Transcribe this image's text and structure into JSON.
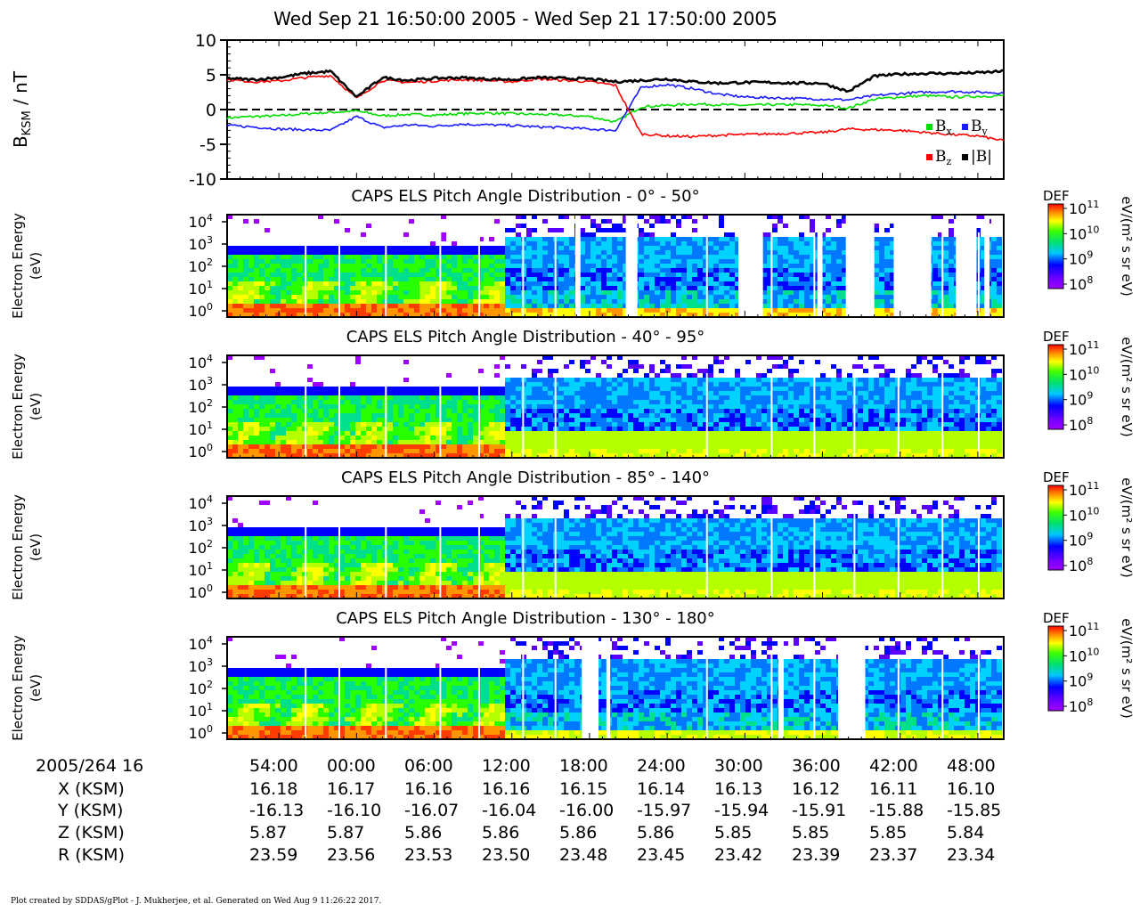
{
  "title": "Wed Sep 21 16:50:00 2005 - Wed Sep 21 17:50:00 2005",
  "mag_panel": {
    "ylabel_main": "B",
    "ylabel_sub": "KSM",
    "ylabel_unit": " / nT",
    "yticks": [
      "10",
      "5",
      "0",
      "-5",
      "-10"
    ],
    "ylim": [
      -10,
      10
    ],
    "legend": [
      {
        "label": "B",
        "sub": "x",
        "color": "#00dd00"
      },
      {
        "label": "B",
        "sub": "y",
        "color": "#1a1aff"
      },
      {
        "label": "B",
        "sub": "z",
        "color": "#ff0000"
      },
      {
        "label": "|B|",
        "sub": "",
        "color": "#000000"
      }
    ]
  },
  "spec_panels": [
    {
      "title": "CAPS ELS Pitch Angle Distribution - 0° - 50°"
    },
    {
      "title": "CAPS ELS Pitch Angle Distribution - 40° - 95°"
    },
    {
      "title": "CAPS ELS Pitch Angle Distribution - 85° - 140°"
    },
    {
      "title": "CAPS ELS Pitch Angle Distribution - 130° - 180°"
    }
  ],
  "spec_ylabel_line1": "Electron Energy",
  "spec_ylabel_line2": "(eV)",
  "spec_yticks": [
    "10",
    "10",
    "10",
    "10",
    "10"
  ],
  "spec_ytick_exps": [
    "4",
    "3",
    "2",
    "1",
    "0"
  ],
  "colorbar": {
    "label": "DEF",
    "unit": "eV/(m² s sr eV)",
    "ticks": [
      "10",
      "10",
      "10",
      "10"
    ],
    "tick_exps": [
      "11",
      "10",
      "9",
      "8"
    ]
  },
  "ephemeris": {
    "labels": [
      "2005/264 16",
      "X (KSM)",
      "Y (KSM)",
      "Z (KSM)",
      "R (KSM)"
    ],
    "columns": [
      {
        "time": "54:00",
        "x": "16.18",
        "y": "-16.13",
        "z": "5.87",
        "r": "23.59"
      },
      {
        "time": "00:00",
        "x": "16.17",
        "y": "-16.10",
        "z": "5.87",
        "r": "23.56"
      },
      {
        "time": "06:00",
        "x": "16.16",
        "y": "-16.07",
        "z": "5.86",
        "r": "23.53"
      },
      {
        "time": "12:00",
        "x": "16.16",
        "y": "-16.04",
        "z": "5.86",
        "r": "23.50"
      },
      {
        "time": "18:00",
        "x": "16.15",
        "y": "-16.00",
        "z": "5.86",
        "r": "23.48"
      },
      {
        "time": "24:00",
        "x": "16.14",
        "y": "-15.97",
        "z": "5.86",
        "r": "23.45"
      },
      {
        "time": "30:00",
        "x": "16.13",
        "y": "-15.94",
        "z": "5.85",
        "r": "23.42"
      },
      {
        "time": "36:00",
        "x": "16.12",
        "y": "-15.91",
        "z": "5.85",
        "r": "23.39"
      },
      {
        "time": "42:00",
        "x": "16.11",
        "y": "-15.88",
        "z": "5.85",
        "r": "23.37"
      },
      {
        "time": "48:00",
        "x": "16.10",
        "y": "-15.85",
        "z": "5.84",
        "r": "23.34"
      }
    ]
  },
  "footer": "Plot created by SDDAS/gPlot - J. Mukherjee, et al.  Generated on Wed Aug 9 11:26:22 2017.",
  "chart_data": {
    "type": "line",
    "title": "Wed Sep 21 16:50:00 2005 - Wed Sep 21 17:50:00 2005",
    "xlabel": "",
    "ylabel": "B KSM / nT",
    "ylim": [
      -10,
      10
    ],
    "x": [
      0,
      2,
      4,
      6,
      8,
      10,
      12,
      14,
      16,
      18,
      20,
      22,
      24,
      26,
      28,
      30,
      32,
      34,
      36,
      38,
      40,
      42,
      44,
      46,
      48,
      50,
      52,
      54,
      56,
      58,
      60
    ],
    "series": [
      {
        "name": "Bx",
        "values": [
          -1.2,
          -1.0,
          -0.9,
          -0.6,
          -0.4,
          -0.2,
          -0.9,
          -0.7,
          -0.8,
          -0.6,
          -0.5,
          -0.6,
          -0.7,
          -0.8,
          -1.0,
          -1.8,
          0.4,
          0.6,
          0.8,
          0.7,
          0.6,
          0.7,
          0.7,
          0.6,
          0.2,
          1.5,
          1.8,
          2.0,
          1.8,
          1.9,
          2.0
        ]
      },
      {
        "name": "By",
        "values": [
          -2.3,
          -2.5,
          -2.8,
          -2.9,
          -3.0,
          -1.0,
          -2.6,
          -2.2,
          -2.4,
          -2.1,
          -2.2,
          -2.3,
          -2.5,
          -2.6,
          -2.8,
          -3.0,
          3.2,
          3.6,
          3.0,
          2.2,
          1.8,
          1.7,
          1.6,
          1.5,
          1.4,
          2.0,
          2.3,
          2.5,
          2.6,
          2.5,
          2.4
        ]
      },
      {
        "name": "Bz",
        "values": [
          4.3,
          4.0,
          4.1,
          4.6,
          4.9,
          1.6,
          4.2,
          3.9,
          4.1,
          4.3,
          4.2,
          4.0,
          4.4,
          4.2,
          4.0,
          3.5,
          -3.5,
          -3.8,
          -3.9,
          -3.7,
          -3.6,
          -3.5,
          -3.4,
          -3.3,
          -2.8,
          -2.9,
          -3.0,
          -3.3,
          -3.6,
          -3.8,
          -4.5
        ]
      },
      {
        "name": "|B|",
        "values": [
          4.5,
          4.3,
          4.6,
          5.2,
          5.5,
          1.8,
          4.6,
          4.2,
          4.5,
          4.6,
          4.4,
          4.3,
          4.6,
          4.5,
          4.4,
          4.0,
          4.2,
          4.4,
          4.0,
          3.8,
          3.9,
          3.9,
          3.8,
          3.8,
          2.6,
          4.8,
          5.1,
          5.2,
          5.2,
          5.3,
          5.5
        ]
      }
    ]
  }
}
